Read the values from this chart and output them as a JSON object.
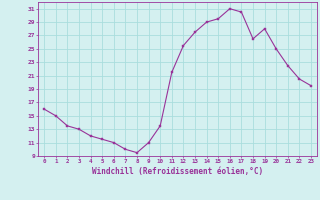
{
  "x": [
    0,
    1,
    2,
    3,
    4,
    5,
    6,
    7,
    8,
    9,
    10,
    11,
    12,
    13,
    14,
    15,
    16,
    17,
    18,
    19,
    20,
    21,
    22,
    23
  ],
  "y": [
    16,
    15,
    13.5,
    13,
    12,
    11.5,
    11,
    10,
    9.5,
    11,
    13.5,
    21.5,
    25.5,
    27.5,
    29,
    29.5,
    31,
    30.5,
    26.5,
    28,
    25,
    22.5,
    20.5,
    19.5
  ],
  "line_color": "#993399",
  "marker_color": "#993399",
  "bg_color": "#d4f0f0",
  "grid_color": "#aadddd",
  "xlabel": "Windchill (Refroidissement éolien,°C)",
  "xlabel_color": "#993399",
  "tick_color": "#993399",
  "ylim": [
    9,
    32
  ],
  "xlim": [
    -0.5,
    23.5
  ],
  "yticks": [
    9,
    11,
    13,
    15,
    17,
    19,
    21,
    23,
    25,
    27,
    29,
    31
  ],
  "xticks": [
    0,
    1,
    2,
    3,
    4,
    5,
    6,
    7,
    8,
    9,
    10,
    11,
    12,
    13,
    14,
    15,
    16,
    17,
    18,
    19,
    20,
    21,
    22,
    23
  ],
  "xtick_labels": [
    "0",
    "1",
    "2",
    "3",
    "4",
    "5",
    "6",
    "7",
    "8",
    "9",
    "10",
    "11",
    "12",
    "13",
    "14",
    "15",
    "16",
    "17",
    "18",
    "19",
    "20",
    "21",
    "22",
    "23"
  ]
}
